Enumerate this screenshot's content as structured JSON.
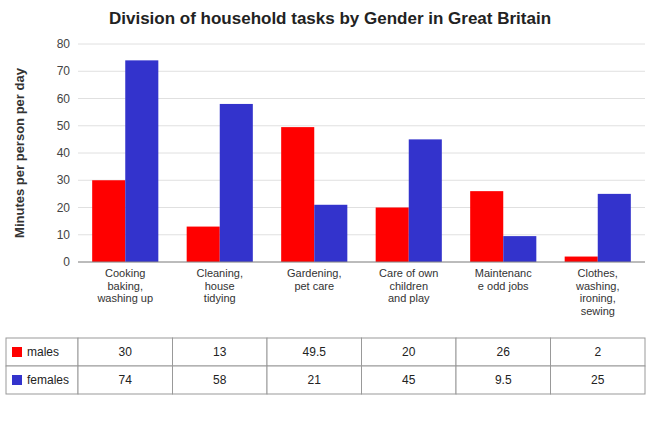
{
  "chart_data": {
    "type": "bar",
    "title": "Division of household tasks by Gender in Great Britain",
    "categories": [
      "Cooking\nbaking,\nwashing up",
      "Cleaning,\nhouse\ntidying",
      "Gardening,\npet care",
      "Care of own\nchildren\nand play",
      "Maintenanc\ne odd jobs",
      "Clothes,\nwashing,\nironing,\nsewing"
    ],
    "series": [
      {
        "name": "males",
        "color": "#FF0000",
        "values": [
          30,
          13,
          49.5,
          20,
          26,
          2
        ]
      },
      {
        "name": "females",
        "color": "#3333CC",
        "values": [
          74,
          58,
          21,
          45,
          9.5,
          25
        ]
      }
    ],
    "ylabel": "Minutes per person per day",
    "ylim": [
      0,
      80
    ],
    "yticks": [
      0,
      10,
      20,
      30,
      40,
      50,
      60,
      70,
      80
    ],
    "grid": true,
    "legend": "bottom"
  }
}
